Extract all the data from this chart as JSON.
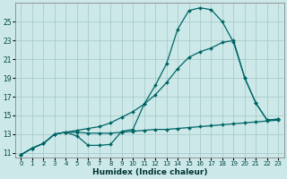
{
  "xlabel": "Humidex (Indice chaleur)",
  "bg_color": "#cce8e8",
  "grid_color": "#aacccc",
  "line_color": "#006666",
  "xlim": [
    -0.5,
    23.5
  ],
  "ylim": [
    10.5,
    27
  ],
  "xticks": [
    0,
    1,
    2,
    3,
    4,
    5,
    6,
    7,
    8,
    9,
    10,
    11,
    12,
    13,
    14,
    15,
    16,
    17,
    18,
    19,
    20,
    21,
    22,
    23
  ],
  "yticks": [
    11,
    13,
    15,
    17,
    19,
    21,
    23,
    25
  ],
  "line1_x": [
    0,
    1,
    2,
    3,
    4,
    5,
    6,
    7,
    8,
    9,
    10,
    11,
    12,
    13,
    14,
    15,
    16,
    17,
    18,
    19,
    20,
    21,
    22,
    23
  ],
  "line1_y": [
    10.8,
    11.5,
    12.0,
    13.0,
    13.2,
    12.8,
    11.8,
    11.8,
    11.9,
    13.3,
    13.5,
    16.2,
    18.2,
    20.5,
    24.2,
    26.2,
    26.5,
    26.3,
    25.0,
    22.8,
    19.0,
    16.3,
    14.5,
    14.6
  ],
  "line2_x": [
    0,
    1,
    2,
    3,
    4,
    5,
    6,
    7,
    8,
    9,
    10,
    11,
    12,
    13,
    14,
    15,
    16,
    17,
    18,
    19,
    20,
    21,
    22,
    23
  ],
  "line2_y": [
    10.8,
    11.5,
    12.0,
    13.0,
    13.2,
    13.4,
    13.6,
    13.8,
    14.2,
    14.8,
    15.4,
    16.2,
    17.2,
    18.5,
    20.0,
    21.2,
    21.8,
    22.2,
    22.8,
    23.0,
    19.0,
    16.3,
    14.5,
    14.6
  ],
  "line3_x": [
    0,
    1,
    2,
    3,
    4,
    5,
    6,
    7,
    8,
    9,
    10,
    11,
    12,
    13,
    14,
    15,
    16,
    17,
    18,
    19,
    20,
    21,
    22,
    23
  ],
  "line3_y": [
    10.8,
    11.5,
    12.0,
    13.0,
    13.2,
    13.2,
    13.1,
    13.1,
    13.1,
    13.2,
    13.3,
    13.4,
    13.5,
    13.5,
    13.6,
    13.7,
    13.8,
    13.9,
    14.0,
    14.1,
    14.2,
    14.3,
    14.4,
    14.5
  ]
}
